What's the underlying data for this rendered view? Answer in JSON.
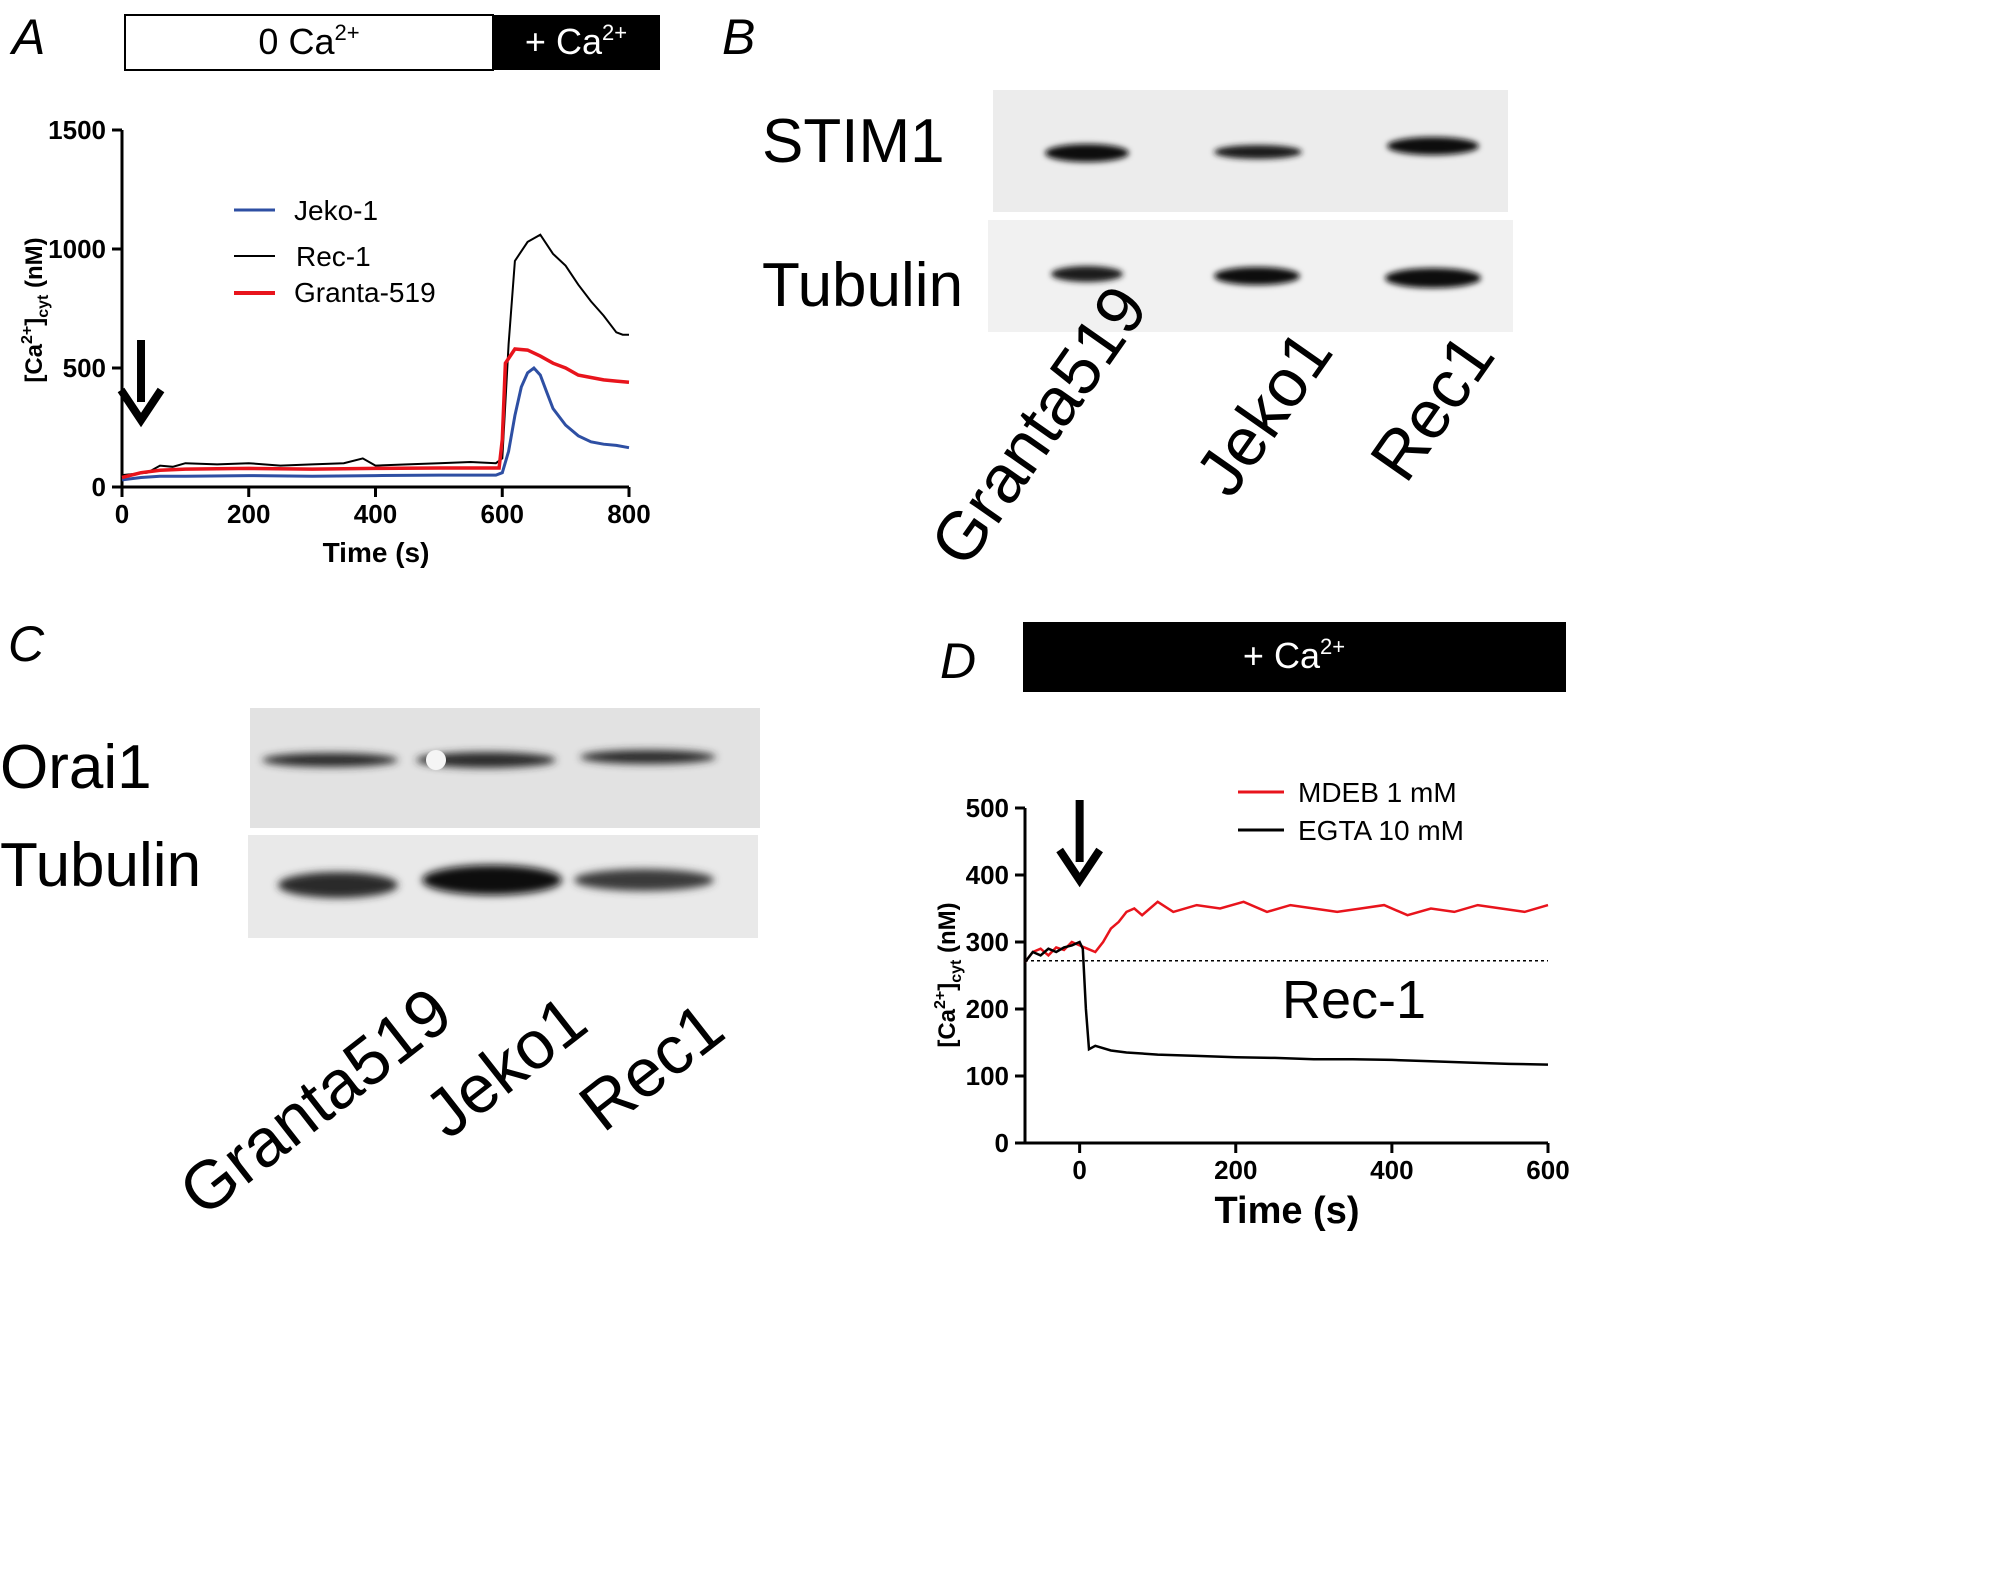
{
  "panels": {
    "A": {
      "letter": "A",
      "bar_left": "0 Ca",
      "bar_right": "+ Ca",
      "bar_sup": "2+",
      "ylabel": {
        "pre": "[Ca",
        "sup": "2+",
        "mid": "]",
        "sub": "cyt",
        "post": " (nM)"
      },
      "legend": [
        "Jeko-1",
        "Rec-1",
        "Granta-519"
      ],
      "colors": {
        "Jeko-1": "#2e4fa3",
        "Rec-1": "#000000",
        "Granta-519": "#e8141c"
      }
    },
    "B": {
      "letter": "B",
      "rows": [
        "STIM1",
        "Tubulin"
      ],
      "lanes": [
        "Granta519",
        "Jeko1",
        "Rec1"
      ]
    },
    "C": {
      "letter": "C",
      "rows": [
        "Orai1",
        "Tubulin"
      ],
      "lanes": [
        "Granta519",
        "Jeko1",
        "Rec1"
      ]
    },
    "D": {
      "letter": "D",
      "bar": "+ Ca",
      "bar_sup": "2+",
      "ylabel": {
        "pre": "[Ca",
        "sup": "2+",
        "mid": "]",
        "sub": "cyt",
        "post": " (nM)"
      },
      "legend": [
        "MDEB 1 mM",
        "EGTA 10 mM"
      ],
      "annotation": "Rec-1",
      "colors": {
        "MDEB 1 mM": "#e8141c",
        "EGTA 10 mM": "#000000"
      }
    }
  },
  "chart_data": [
    {
      "type": "line",
      "panel": "A",
      "xlabel": "Time (s)",
      "ylabel": "[Ca2+]cyt (nM)",
      "xlim": [
        0,
        800
      ],
      "ylim": [
        0,
        1500
      ],
      "xticks": [
        0,
        200,
        400,
        600,
        800
      ],
      "yticks": [
        0,
        500,
        1000,
        1500
      ],
      "arrow_at_x": 30,
      "series": [
        {
          "name": "Jeko-1",
          "x": [
            0,
            30,
            60,
            100,
            200,
            300,
            400,
            500,
            590,
            600,
            610,
            620,
            630,
            640,
            650,
            660,
            670,
            680,
            700,
            720,
            740,
            760,
            780,
            800
          ],
          "y": [
            30,
            40,
            45,
            45,
            48,
            45,
            48,
            50,
            50,
            60,
            150,
            300,
            420,
            480,
            500,
            470,
            400,
            330,
            260,
            215,
            190,
            180,
            175,
            165
          ]
        },
        {
          "name": "Rec-1",
          "x": [
            0,
            20,
            40,
            60,
            80,
            100,
            150,
            200,
            250,
            300,
            350,
            380,
            400,
            450,
            500,
            550,
            590,
            600,
            610,
            620,
            640,
            660,
            680,
            700,
            720,
            740,
            760,
            780,
            790,
            800
          ],
          "y": [
            50,
            55,
            60,
            90,
            85,
            100,
            95,
            100,
            90,
            95,
            100,
            120,
            90,
            95,
            100,
            105,
            100,
            120,
            600,
            950,
            1030,
            1060,
            980,
            930,
            850,
            780,
            720,
            650,
            640,
            640
          ]
        },
        {
          "name": "Granta-519",
          "x": [
            0,
            30,
            60,
            100,
            200,
            300,
            400,
            500,
            595,
            600,
            605,
            620,
            640,
            660,
            680,
            700,
            720,
            740,
            760,
            780,
            800
          ],
          "y": [
            40,
            60,
            70,
            75,
            78,
            75,
            78,
            80,
            80,
            200,
            520,
            580,
            575,
            550,
            520,
            500,
            470,
            460,
            450,
            445,
            440
          ]
        }
      ]
    },
    {
      "type": "line",
      "panel": "D",
      "xlabel": "Time (s)",
      "ylabel": "[Ca2+]cyt (nM)",
      "xlim": [
        -70,
        600
      ],
      "ylim": [
        0,
        500
      ],
      "xticks": [
        0,
        200,
        400,
        600
      ],
      "yticks": [
        0,
        100,
        200,
        300,
        400,
        500
      ],
      "arrow_at_x": 0,
      "reference_line_y": 272,
      "series": [
        {
          "name": "MDEB 1 mM",
          "x": [
            -70,
            -60,
            -50,
            -40,
            -30,
            -20,
            -10,
            0,
            10,
            20,
            30,
            40,
            50,
            60,
            70,
            80,
            100,
            120,
            150,
            180,
            210,
            240,
            270,
            300,
            330,
            360,
            390,
            420,
            450,
            480,
            510,
            540,
            570,
            600
          ],
          "y": [
            270,
            285,
            290,
            280,
            292,
            288,
            300,
            295,
            290,
            285,
            300,
            320,
            330,
            345,
            350,
            340,
            360,
            345,
            355,
            350,
            360,
            345,
            355,
            350,
            345,
            350,
            355,
            340,
            350,
            345,
            355,
            350,
            345,
            355
          ]
        },
        {
          "name": "EGTA 10 mM",
          "x": [
            -70,
            -60,
            -50,
            -40,
            -30,
            -20,
            -10,
            0,
            4,
            8,
            12,
            20,
            40,
            60,
            100,
            150,
            200,
            250,
            300,
            350,
            400,
            450,
            500,
            550,
            600
          ],
          "y": [
            270,
            285,
            280,
            290,
            285,
            292,
            295,
            300,
            290,
            200,
            140,
            145,
            138,
            135,
            132,
            130,
            128,
            127,
            125,
            125,
            124,
            122,
            120,
            118,
            117
          ]
        }
      ]
    }
  ]
}
